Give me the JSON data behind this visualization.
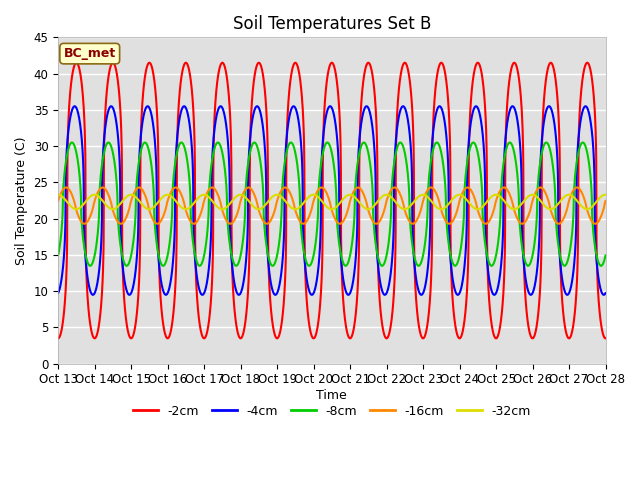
{
  "title": "Soil Temperatures Set B",
  "xlabel": "Time",
  "ylabel": "Soil Temperature (C)",
  "annotation": "BC_met",
  "ylim": [
    0,
    45
  ],
  "yticks": [
    0,
    5,
    10,
    15,
    20,
    25,
    30,
    35,
    40,
    45
  ],
  "xtick_labels": [
    "Oct 13",
    "Oct 14",
    "Oct 15",
    "Oct 16",
    "Oct 17",
    "Oct 18",
    "Oct 19",
    "Oct 20",
    "Oct 21",
    "Oct 22",
    "Oct 23",
    "Oct 24",
    "Oct 25",
    "Oct 26",
    "Oct 27",
    "Oct 28"
  ],
  "legend_labels": [
    "-2cm",
    "-4cm",
    "-8cm",
    "-16cm",
    "-32cm"
  ],
  "legend_colors": [
    "#ff0000",
    "#0000ff",
    "#00cc00",
    "#ff8800",
    "#dddd00"
  ],
  "bg_color": "#e0e0e0",
  "title_fontsize": 12,
  "label_fontsize": 9,
  "tick_fontsize": 8.5,
  "series_params": {
    "-2cm": {
      "amplitude": 19.0,
      "mean": 22.5,
      "phase": -1.57,
      "lw": 1.5,
      "sharpness": 3.0
    },
    "-4cm": {
      "amplitude": 13.0,
      "mean": 22.5,
      "phase": -1.27,
      "lw": 1.5,
      "sharpness": 2.5
    },
    "-8cm": {
      "amplitude": 8.5,
      "mean": 22.0,
      "phase": -0.8,
      "lw": 1.5,
      "sharpness": 1.8
    },
    "-16cm": {
      "amplitude": 2.5,
      "mean": 21.8,
      "phase": 0.2,
      "lw": 1.5,
      "sharpness": 1.2
    },
    "-32cm": {
      "amplitude": 1.0,
      "mean": 22.3,
      "phase": 1.6,
      "lw": 1.5,
      "sharpness": 1.0
    }
  }
}
